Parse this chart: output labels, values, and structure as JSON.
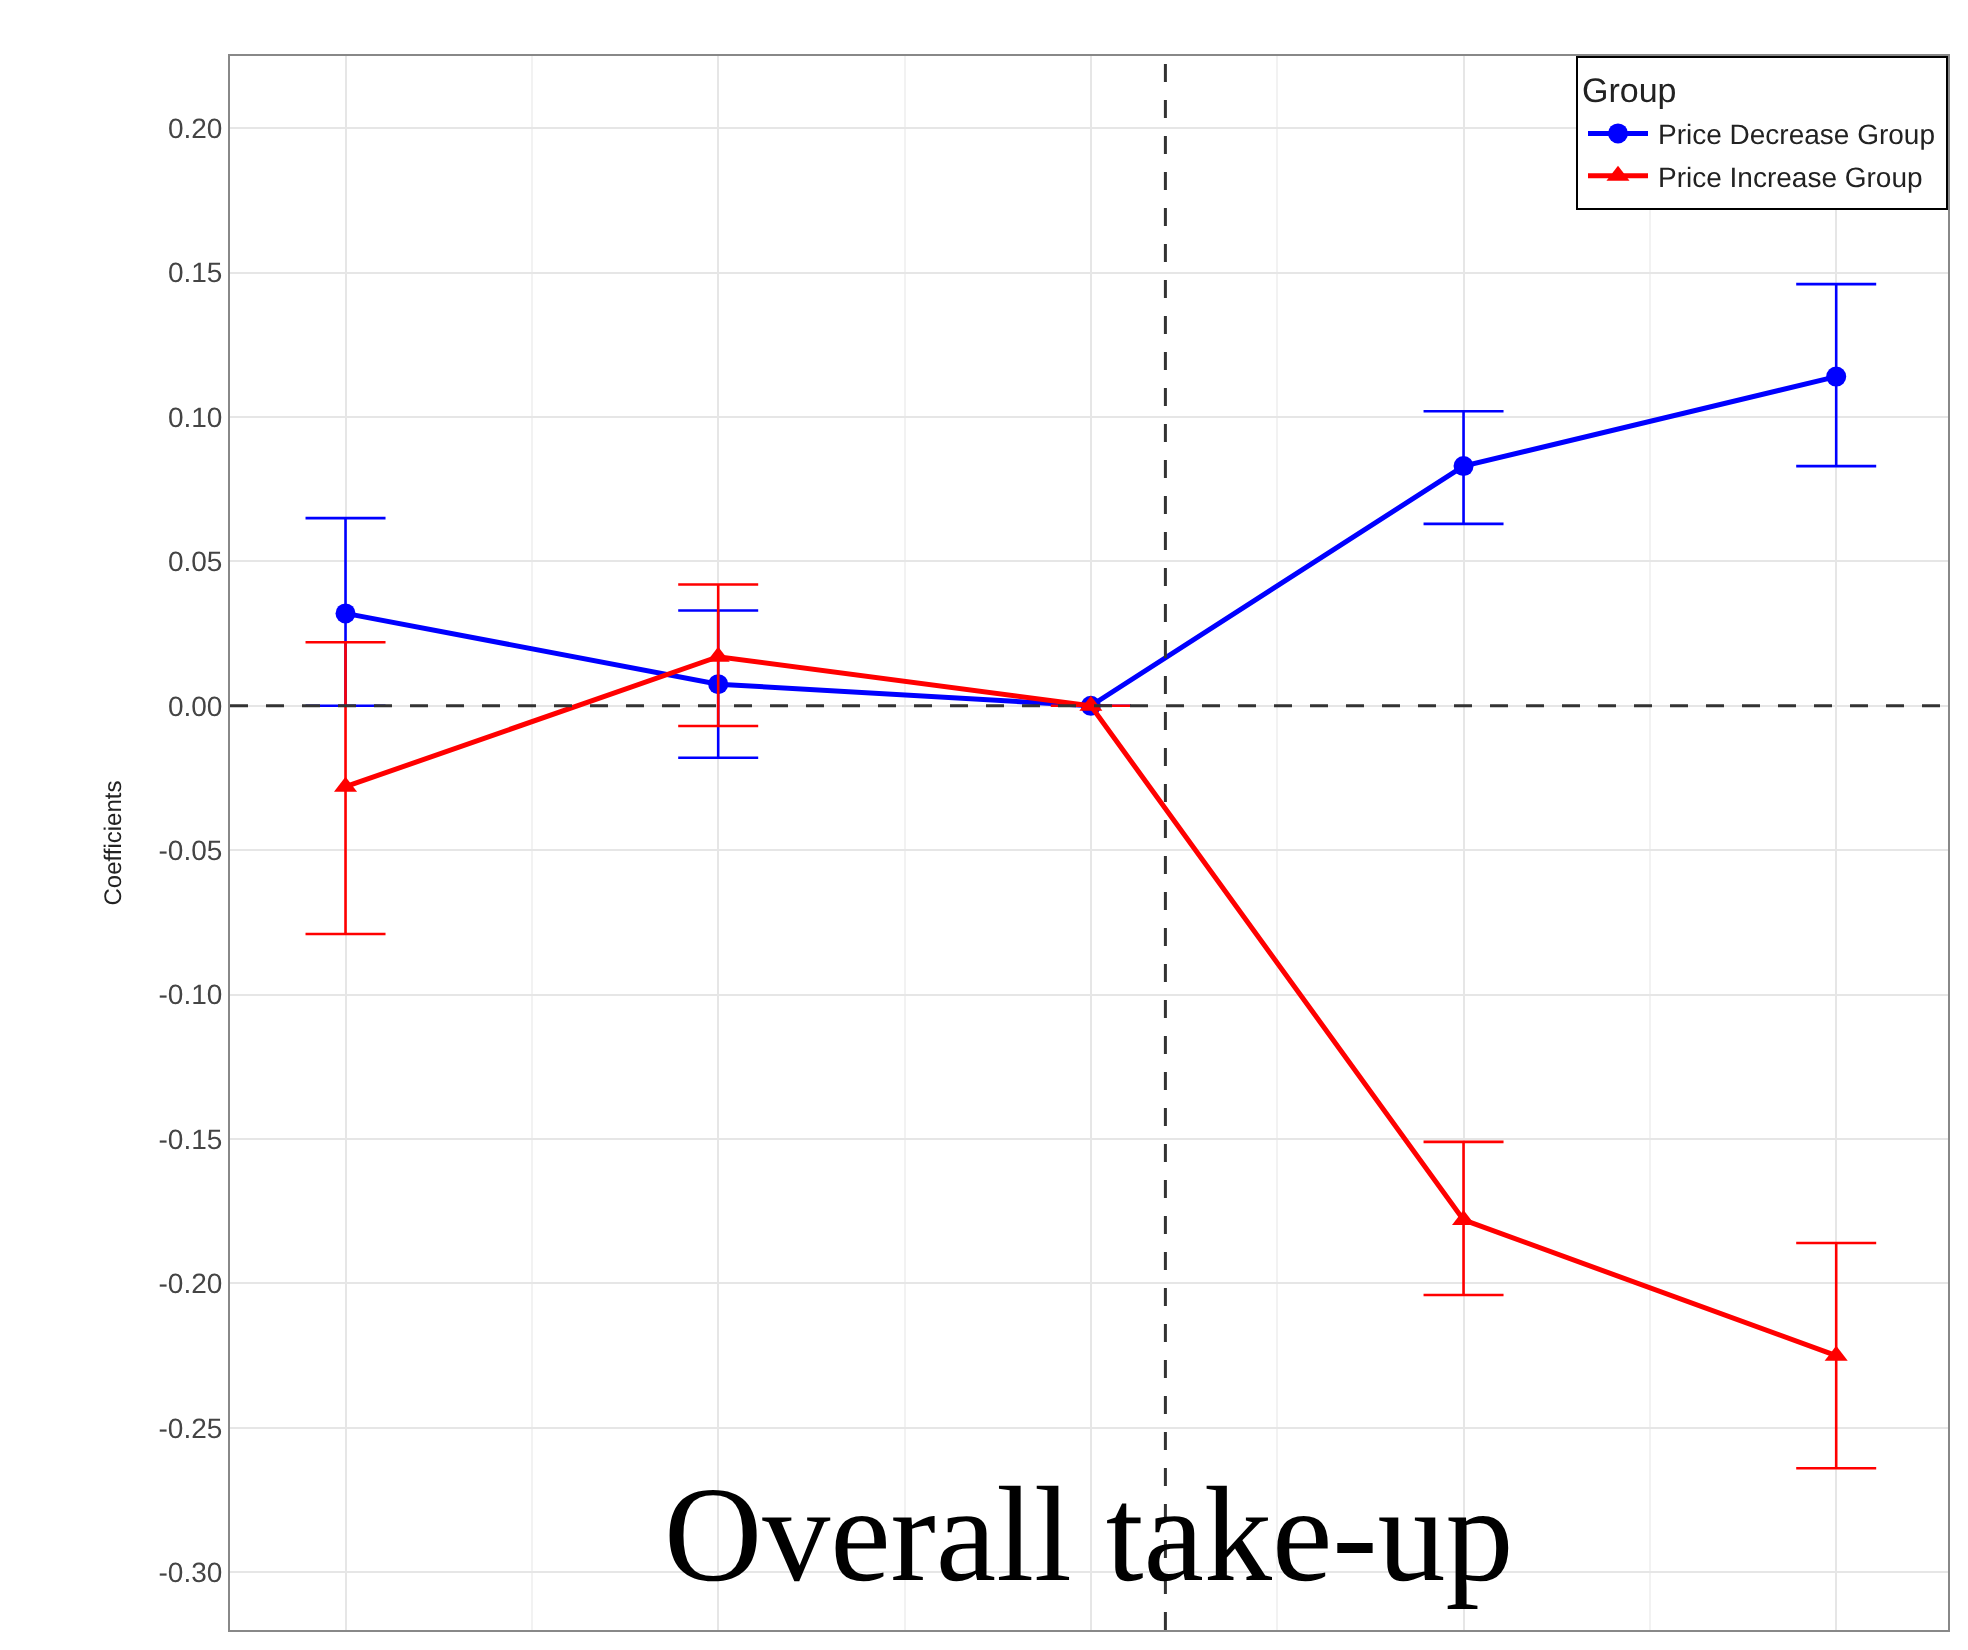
{
  "chart_data": {
    "type": "line",
    "annotations": [
      "Overall take-up"
    ],
    "ylabel": "Coefficients",
    "legend_title": "Group",
    "categories": [
      null,
      null,
      null,
      null,
      null
    ],
    "ylim": [
      -0.32,
      0.225
    ],
    "yticks": [
      {
        "value": 0.2,
        "label": "0.20"
      },
      {
        "value": 0.15,
        "label": "0.15"
      },
      {
        "value": 0.1,
        "label": "0.10"
      },
      {
        "value": 0.05,
        "label": "0.05"
      },
      {
        "value": 0,
        "label": "0.00"
      },
      {
        "value": -0.05,
        "label": "-0.05"
      },
      {
        "value": -0.1,
        "label": "-0.10"
      },
      {
        "value": -0.15,
        "label": "-0.15"
      },
      {
        "value": -0.2,
        "label": "-0.20"
      },
      {
        "value": -0.25,
        "label": "-0.25"
      },
      {
        "value": -0.3,
        "label": "-0.30"
      }
    ],
    "tick_labels": "y",
    "grid": true,
    "legend": "top right",
    "series": [
      {
        "name": "Price Decrease Group",
        "color": "#0000ff",
        "marker": "circle",
        "values": [
          0.032,
          0.0075,
          0,
          0.083,
          0.114
        ],
        "errors": [
          [
            0.0,
            0.065
          ],
          [
            -0.018,
            0.033
          ],
          null,
          [
            0.063,
            0.102
          ],
          [
            0.083,
            0.146
          ]
        ]
      },
      {
        "name": "Price Increase Group",
        "color": "#ff0000",
        "marker": "triangle",
        "values": [
          -0.028,
          0.017,
          0,
          -0.178,
          -0.225
        ],
        "errors": [
          [
            -0.079,
            0.022
          ],
          [
            -0.007,
            0.042
          ],
          null,
          [
            -0.204,
            -0.151
          ],
          [
            -0.264,
            -0.186
          ]
        ]
      }
    ],
    "ref_lines": [
      {
        "axis": "y",
        "value": 0,
        "color": "#333333",
        "line_style": "dashed"
      }
    ]
  }
}
